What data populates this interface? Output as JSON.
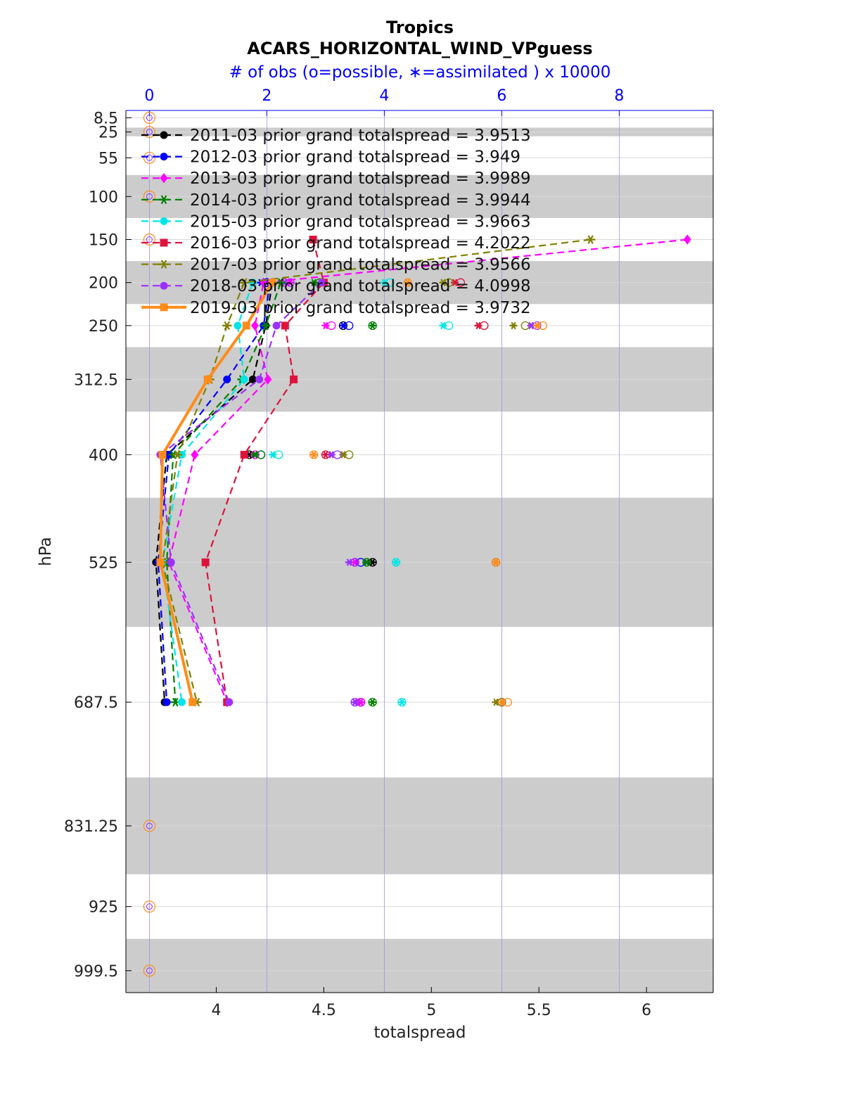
{
  "chart_data": {
    "type": "line",
    "title": "Tropics",
    "subtitle": "ACARS_HORIZONTAL_WIND_VPguess",
    "top_axis_label": "# of obs (o=possible, ∗=assimilated ) x 10000",
    "xlabel": "totalspread",
    "ylabel": "hPa",
    "xlim": [
      3.58,
      6.31
    ],
    "x_ticks": [
      4,
      4.5,
      5,
      5.5,
      6
    ],
    "x_tick_labels": [
      "4",
      "4.5",
      "5",
      "5.5",
      "6"
    ],
    "top_xlim": [
      -0.4,
      9.6
    ],
    "top_ticks": [
      0,
      2,
      4,
      6,
      8
    ],
    "top_tick_labels": [
      "0",
      "2",
      "4",
      "6",
      "8"
    ],
    "y_levels": [
      8.5,
      25,
      55,
      100,
      150,
      200,
      250,
      312.5,
      400,
      525,
      687.5,
      831.25,
      925,
      999.5
    ],
    "y_tick_labels": [
      "8.5",
      "25",
      "55",
      "100",
      "150",
      "200",
      "250",
      "312.5",
      "400",
      "525",
      "687.5",
      "831.25",
      "925",
      "999.5"
    ],
    "ylim": [
      0,
      1025
    ],
    "shaded_bands": [
      [
        20,
        30
      ],
      [
        75,
        125
      ],
      [
        175,
        225
      ],
      [
        275,
        350
      ],
      [
        450,
        600
      ],
      [
        775,
        887.5
      ],
      [
        962.5,
        1025
      ]
    ],
    "series": [
      {
        "name": "2011-03",
        "legend": "2011-03 prior grand totalspread = 3.9513",
        "color": "#000000",
        "marker": "circle",
        "dashed": true,
        "levels": [
          200,
          250,
          312.5,
          400,
          525,
          687.5
        ],
        "values": [
          4.26,
          4.23,
          4.17,
          3.77,
          3.72,
          3.76
        ],
        "obs_possible": [
          2.0,
          3.3,
          null,
          1.7,
          3.8,
          3.6
        ],
        "obs_assim": [
          1.9,
          3.3,
          null,
          1.7,
          3.8,
          3.6
        ]
      },
      {
        "name": "2012-03",
        "legend": "2012-03 prior grand totalspread = 3.949",
        "color": "#0000ff",
        "marker": "circle",
        "dashed": true,
        "levels": [
          200,
          250,
          312.5,
          400,
          525,
          687.5
        ],
        "values": [
          4.25,
          4.22,
          4.05,
          3.78,
          3.73,
          3.77
        ],
        "obs_possible": [
          2.0,
          3.4,
          null,
          1.9,
          3.6,
          3.6
        ],
        "obs_assim": [
          1.9,
          3.3,
          null,
          1.8,
          3.5,
          3.5
        ]
      },
      {
        "name": "2013-03",
        "legend": "2013-03 prior grand totalspread = 3.9989",
        "color": "#ff00ff",
        "marker": "diamond",
        "dashed": true,
        "levels": [
          150,
          200,
          250,
          312.5,
          400,
          525,
          687.5
        ],
        "values": [
          6.19,
          4.22,
          4.18,
          4.24,
          3.9,
          3.78,
          4.05
        ],
        "obs_possible": [
          null,
          2.3,
          3.1,
          null,
          1.8,
          3.5,
          3.6
        ],
        "obs_assim": [
          null,
          2.4,
          3.0,
          null,
          1.8,
          3.5,
          3.6
        ]
      },
      {
        "name": "2014-03",
        "legend": "2014-03 prior grand totalspread = 3.9944",
        "color": "#008000",
        "marker": "star",
        "dashed": true,
        "levels": [
          200,
          250,
          312.5,
          400,
          525,
          687.5
        ],
        "values": [
          4.3,
          4.23,
          4.12,
          3.8,
          3.77,
          3.81
        ],
        "obs_possible": [
          2.9,
          3.8,
          null,
          1.9,
          3.7,
          3.8
        ],
        "obs_assim": [
          2.8,
          3.8,
          null,
          1.8,
          3.7,
          3.8
        ]
      },
      {
        "name": "2015-03",
        "legend": "2015-03 prior grand totalspread = 3.9663",
        "color": "#00e5e5",
        "marker": "circle",
        "dashed": true,
        "levels": [
          200,
          250,
          312.5,
          400,
          525,
          687.5
        ],
        "values": [
          4.17,
          4.1,
          4.13,
          3.84,
          3.75,
          3.84
        ],
        "obs_possible": [
          4.1,
          5.1,
          null,
          2.2,
          4.2,
          4.3
        ],
        "obs_assim": [
          4.0,
          5.0,
          null,
          2.1,
          4.2,
          4.3
        ]
      },
      {
        "name": "2016-03",
        "legend": "2016-03 prior grand totalspread = 4.2022",
        "color": "#dc143c",
        "marker": "square",
        "dashed": true,
        "levels": [
          150,
          200,
          250,
          312.5,
          400,
          525,
          687.5
        ],
        "values": [
          4.45,
          4.5,
          4.32,
          4.36,
          4.13,
          3.95,
          4.05
        ],
        "obs_possible": [
          null,
          5.3,
          5.7,
          null,
          3.0,
          5.9,
          6.0
        ],
        "obs_assim": [
          null,
          5.2,
          5.6,
          null,
          3.0,
          5.9,
          6.0
        ]
      },
      {
        "name": "2017-03",
        "legend": "2017-03 prior grand totalspread = 3.9566",
        "color": "#808000",
        "marker": "star",
        "dashed": true,
        "levels": [
          150,
          200,
          250,
          312.5,
          400,
          525,
          687.5
        ],
        "values": [
          5.74,
          4.13,
          4.05,
          3.97,
          3.82,
          3.75,
          3.91
        ],
        "obs_possible": [
          null,
          5.1,
          6.4,
          null,
          3.4,
          5.9,
          6.0
        ],
        "obs_assim": [
          null,
          5.0,
          6.2,
          null,
          3.3,
          5.9,
          5.9
        ]
      },
      {
        "name": "2018-03",
        "legend": "2018-03 prior grand totalspread = 4.0998",
        "color": "#9b30ff",
        "marker": "circle",
        "dashed": true,
        "levels": [
          200,
          250,
          312.5,
          400,
          525,
          687.5
        ],
        "values": [
          4.49,
          4.28,
          4.2,
          3.74,
          3.79,
          4.06
        ],
        "obs_possible": [
          2.4,
          6.6,
          null,
          3.2,
          3.5,
          3.5
        ],
        "obs_assim": [
          2.3,
          6.5,
          null,
          3.1,
          3.4,
          3.5
        ]
      },
      {
        "name": "2019-03",
        "legend": "2019-03 prior grand totalspread = 3.9732",
        "color": "#ff8c1a",
        "marker": "square",
        "dashed": false,
        "levels": [
          200,
          250,
          312.5,
          400,
          525,
          687.5
        ],
        "values": [
          4.26,
          4.14,
          3.96,
          3.75,
          3.74,
          3.89
        ],
        "obs_possible": [
          4.4,
          6.7,
          null,
          2.8,
          5.9,
          6.1
        ],
        "obs_assim": [
          4.4,
          6.6,
          null,
          2.8,
          5.9,
          6.0
        ]
      }
    ]
  }
}
